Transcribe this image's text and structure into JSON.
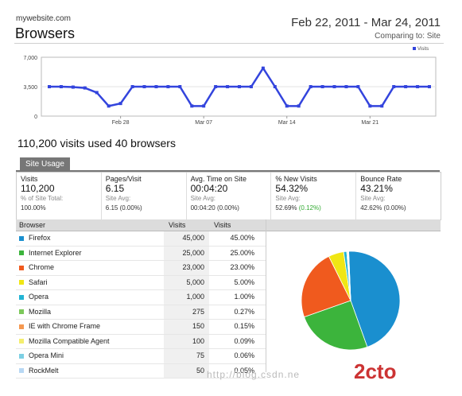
{
  "header": {
    "site": "mywebsite.com",
    "title": "Browsers",
    "date_range": "Feb 22, 2011 - Mar 24, 2011",
    "comparing": "Comparing to: Site"
  },
  "chart_data": {
    "type": "line",
    "legend": "Visits",
    "legend_position": "top-right",
    "series": [
      {
        "name": "Visits",
        "values": [
          3500,
          3500,
          3450,
          3350,
          2800,
          1200,
          1500,
          3500,
          3500,
          3500,
          3500,
          3500,
          1200,
          1200,
          3500,
          3500,
          3500,
          3500,
          5700,
          3500,
          1200,
          1200,
          3500,
          3500,
          3500,
          3500,
          3500,
          1200,
          1200,
          3500,
          3500,
          3500,
          3500
        ]
      }
    ],
    "x_tick_labels": [
      "Feb 28",
      "Mar 07",
      "Mar 14",
      "Mar 21"
    ],
    "y_tick_labels": [
      "7,000",
      "3,500",
      "0"
    ],
    "ylim": [
      0,
      7000
    ],
    "grid": true,
    "color": "#3344dd"
  },
  "summary": "110,200 visits used 40 browsers",
  "tab": "Site Usage",
  "metrics": [
    {
      "label": "Visits",
      "value": "110,200",
      "sub": "% of Site Total:",
      "bottom": "100.00%",
      "extra": ""
    },
    {
      "label": "Pages/Visit",
      "value": "6.15",
      "sub": "Site Avg:",
      "bottom": "6.15 (0.00%)",
      "extra": ""
    },
    {
      "label": "Avg. Time on Site",
      "value": "00:04:20",
      "sub": "Site Avg:",
      "bottom": "00:04:20 (0.00%)",
      "extra": ""
    },
    {
      "label": "% New Visits",
      "value": "54.32%",
      "sub": "Site Avg:",
      "bottom": "52.69%",
      "extra": "(0.12%)"
    },
    {
      "label": "Bounce Rate",
      "value": "43.21%",
      "sub": "Site Avg:",
      "bottom": "42.62% (0.00%)",
      "extra": ""
    }
  ],
  "table": {
    "headers": [
      "Browser",
      "Visits",
      "Visits"
    ],
    "rows": [
      {
        "browser": "Firefox",
        "visits": "45,000",
        "pct": "45.00%",
        "color": "#1a8fcf",
        "value": 45000
      },
      {
        "browser": "Internet Explorer",
        "visits": "25,000",
        "pct": "25.00%",
        "color": "#3cb43c",
        "value": 25000
      },
      {
        "browser": "Chrome",
        "visits": "23,000",
        "pct": "23.00%",
        "color": "#f05a1e",
        "value": 23000
      },
      {
        "browser": "Safari",
        "visits": "5,000",
        "pct": "5.00%",
        "color": "#f0e614",
        "value": 5000
      },
      {
        "browser": "Opera",
        "visits": "1,000",
        "pct": "1.00%",
        "color": "#22b4d4",
        "value": 1000
      },
      {
        "browser": "Mozilla",
        "visits": "275",
        "pct": "0.27%",
        "color": "#7cc85a",
        "value": 275
      },
      {
        "browser": "IE with Chrome Frame",
        "visits": "150",
        "pct": "0.15%",
        "color": "#f59850",
        "value": 150
      },
      {
        "browser": "Mozilla Compatible Agent",
        "visits": "100",
        "pct": "0.09%",
        "color": "#f4ee6e",
        "value": 100
      },
      {
        "browser": "Opera Mini",
        "visits": "75",
        "pct": "0.06%",
        "color": "#7dd0e4",
        "value": 75
      },
      {
        "browser": "RockMelt",
        "visits": "50",
        "pct": "0.05%",
        "color": "#b8d8f4",
        "value": 50
      }
    ]
  },
  "watermark": "http://blog.csdn.ne",
  "watermark_logo": "2cto"
}
